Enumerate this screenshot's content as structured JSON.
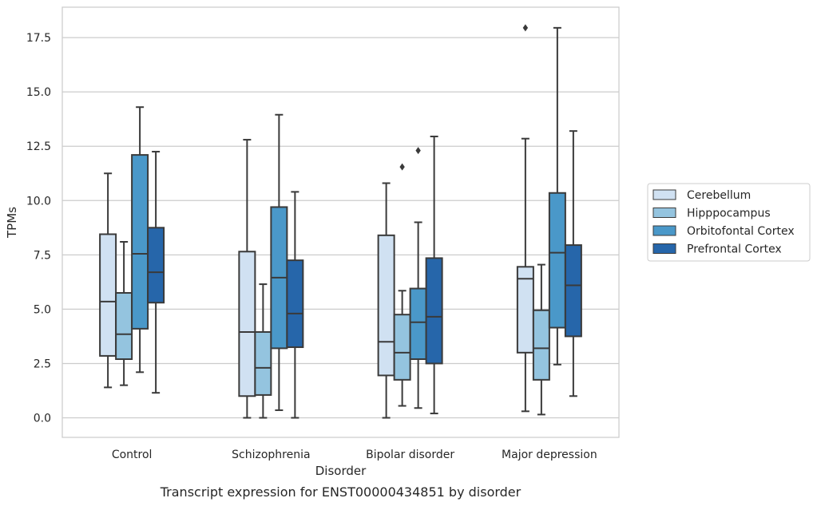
{
  "chart_data": {
    "type": "boxplot",
    "caption": "Transcript expression for ENST00000434851 by disorder",
    "xlabel": "Disorder",
    "ylabel": "TPMs",
    "ylim": [
      -0.9,
      18.9
    ],
    "yticks": [
      0.0,
      2.5,
      5.0,
      7.5,
      10.0,
      12.5,
      15.0,
      17.5
    ],
    "ytick_labels": [
      "0.0",
      "2.5",
      "5.0",
      "7.5",
      "10.0",
      "12.5",
      "15.0",
      "17.5"
    ],
    "grid": "horizontal",
    "legend_position": "right",
    "categories": [
      "Control",
      "Schizophrenia",
      "Bipolar disorder",
      "Major depression"
    ],
    "series": [
      {
        "name": "Cerebellum",
        "color": "#d0e1f2",
        "boxes": [
          {
            "whislo": 1.4,
            "q1": 2.85,
            "med": 5.35,
            "q3": 8.45,
            "whishi": 11.25,
            "fliers": []
          },
          {
            "whislo": 0.0,
            "q1": 1.0,
            "med": 3.95,
            "q3": 7.65,
            "whishi": 12.8,
            "fliers": []
          },
          {
            "whislo": 0.0,
            "q1": 1.95,
            "med": 3.5,
            "q3": 8.4,
            "whishi": 10.8,
            "fliers": []
          },
          {
            "whislo": 0.3,
            "q1": 3.0,
            "med": 6.4,
            "q3": 6.95,
            "whishi": 12.85,
            "fliers": [
              17.95
            ]
          }
        ]
      },
      {
        "name": "Hipppocampus",
        "color": "#94c4df",
        "boxes": [
          {
            "whislo": 1.5,
            "q1": 2.7,
            "med": 3.85,
            "q3": 5.75,
            "whishi": 8.1,
            "fliers": []
          },
          {
            "whislo": 0.0,
            "q1": 1.05,
            "med": 2.3,
            "q3": 3.95,
            "whishi": 6.15,
            "fliers": []
          },
          {
            "whislo": 0.55,
            "q1": 1.75,
            "med": 3.0,
            "q3": 4.75,
            "whishi": 5.85,
            "fliers": [
              11.55
            ]
          },
          {
            "whislo": 0.15,
            "q1": 1.75,
            "med": 3.2,
            "q3": 4.95,
            "whishi": 7.05,
            "fliers": []
          }
        ]
      },
      {
        "name": "Orbitofontal Cortex",
        "color": "#4a98c9",
        "boxes": [
          {
            "whislo": 2.1,
            "q1": 4.1,
            "med": 7.55,
            "q3": 12.1,
            "whishi": 14.3,
            "fliers": []
          },
          {
            "whislo": 0.35,
            "q1": 3.2,
            "med": 6.45,
            "q3": 9.7,
            "whishi": 13.95,
            "fliers": []
          },
          {
            "whislo": 0.45,
            "q1": 2.7,
            "med": 4.4,
            "q3": 5.95,
            "whishi": 9.0,
            "fliers": [
              12.3
            ]
          },
          {
            "whislo": 2.45,
            "q1": 4.15,
            "med": 7.6,
            "q3": 10.35,
            "whishi": 17.95,
            "fliers": []
          }
        ]
      },
      {
        "name": "Prefrontal Cortex",
        "color": "#2666aa",
        "boxes": [
          {
            "whislo": 1.15,
            "q1": 5.3,
            "med": 6.7,
            "q3": 8.75,
            "whishi": 12.25,
            "fliers": []
          },
          {
            "whislo": 0.0,
            "q1": 3.25,
            "med": 4.8,
            "q3": 7.25,
            "whishi": 10.4,
            "fliers": []
          },
          {
            "whislo": 0.2,
            "q1": 2.5,
            "med": 4.65,
            "q3": 7.35,
            "whishi": 12.95,
            "fliers": []
          },
          {
            "whislo": 1.0,
            "q1": 3.75,
            "med": 6.1,
            "q3": 7.95,
            "whishi": 13.2,
            "fliers": []
          }
        ]
      }
    ]
  }
}
